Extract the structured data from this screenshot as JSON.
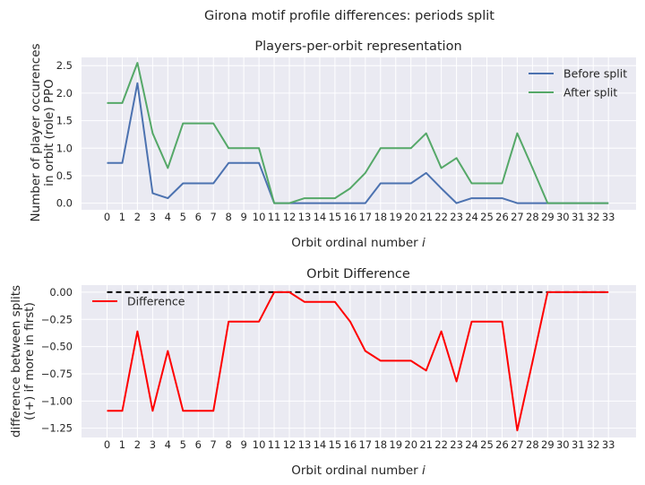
{
  "figure": {
    "suptitle": "Girona motif profile differences: periods split"
  },
  "chart_data": [
    {
      "type": "line",
      "title": "Players-per-orbit representation",
      "xlabel": "Orbit ordinal number ",
      "xlabel_var": "i",
      "ylabel": [
        "Number of player occurences",
        "in orbit (role) PPO"
      ],
      "categories": [
        "0",
        "1",
        "2",
        "3",
        "4",
        "5",
        "6",
        "7",
        "8",
        "9",
        "10",
        "11",
        "12",
        "13",
        "14",
        "15",
        "16",
        "17",
        "18",
        "19",
        "20",
        "21",
        "22",
        "23",
        "24",
        "25",
        "26",
        "27",
        "28",
        "29",
        "30",
        "31",
        "32",
        "33"
      ],
      "ylim": [
        -0.12,
        2.65
      ],
      "yticks": [
        0.0,
        0.5,
        1.0,
        1.5,
        2.0,
        2.5
      ],
      "ytick_labels": [
        "0.0",
        "0.5",
        "1.0",
        "1.5",
        "2.0",
        "2.5"
      ],
      "grid": true,
      "legend_position": "top-right",
      "series": [
        {
          "name": "Before split",
          "color": "#4c72b0",
          "values": [
            0.73,
            0.73,
            2.18,
            0.18,
            0.09,
            0.36,
            0.36,
            0.36,
            0.73,
            0.73,
            0.73,
            0,
            0,
            0,
            0,
            0,
            0,
            0,
            0.36,
            0.36,
            0.36,
            0.55,
            0.27,
            0,
            0.09,
            0.09,
            0.09,
            0,
            0,
            0,
            0,
            0,
            0,
            0
          ]
        },
        {
          "name": "After split",
          "color": "#55a868",
          "values": [
            1.82,
            1.82,
            2.55,
            1.27,
            0.64,
            1.45,
            1.45,
            1.45,
            1.0,
            1.0,
            1.0,
            0,
            0,
            0.09,
            0.09,
            0.09,
            0.27,
            0.55,
            1.0,
            1.0,
            1.0,
            1.27,
            0.64,
            0.82,
            0.36,
            0.36,
            0.36,
            1.27,
            0.64,
            0,
            0,
            0,
            0,
            0
          ]
        }
      ]
    },
    {
      "type": "line",
      "title": "Orbit Difference",
      "xlabel": "Orbit ordinal number ",
      "xlabel_var": "i",
      "ylabel": [
        "difference between splits",
        "((+) if more in first)"
      ],
      "categories": [
        "0",
        "1",
        "2",
        "3",
        "4",
        "5",
        "6",
        "7",
        "8",
        "9",
        "10",
        "11",
        "12",
        "13",
        "14",
        "15",
        "16",
        "17",
        "18",
        "19",
        "20",
        "21",
        "22",
        "23",
        "24",
        "25",
        "26",
        "27",
        "28",
        "29",
        "30",
        "31",
        "32",
        "33"
      ],
      "ylim": [
        -1.335,
        0.065
      ],
      "yticks": [
        0.0,
        -0.25,
        -0.5,
        -0.75,
        -1.0,
        -1.25
      ],
      "ytick_labels": [
        "0.00",
        "−0.25",
        "−0.50",
        "−0.75",
        "−1.00",
        "−1.25"
      ],
      "grid": true,
      "legend_position": "top-left",
      "zero_line": {
        "y": 0,
        "style": "dashed",
        "color": "#000000"
      },
      "series": [
        {
          "name": "Difference",
          "color": "#ff0000",
          "values": [
            -1.09,
            -1.09,
            -0.36,
            -1.09,
            -0.54,
            -1.09,
            -1.09,
            -1.09,
            -0.27,
            -0.27,
            -0.27,
            0,
            0,
            -0.09,
            -0.09,
            -0.09,
            -0.27,
            -0.54,
            -0.63,
            -0.63,
            -0.63,
            -0.72,
            -0.36,
            -0.82,
            -0.27,
            -0.27,
            -0.27,
            -1.27,
            -0.64,
            0,
            0,
            0,
            0,
            0
          ]
        }
      ]
    }
  ]
}
